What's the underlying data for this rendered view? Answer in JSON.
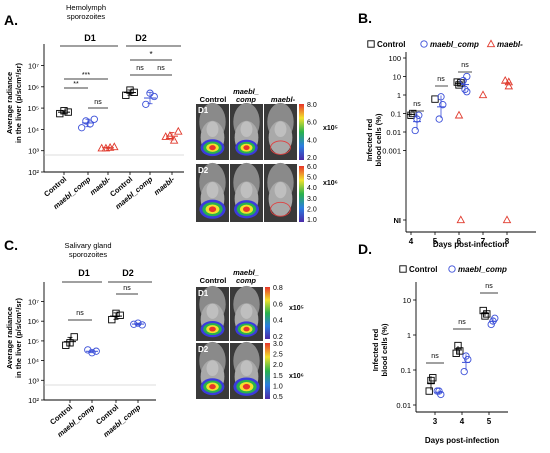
{
  "colors": {
    "control": "#000000",
    "comp": "#3b4fd8",
    "ko": "#e0392c",
    "img_bg": "#3a3a3a",
    "ellipse": "#e04040"
  },
  "panel_labels": [
    "A.",
    "B.",
    "C.",
    "D."
  ],
  "panelA": {
    "title_line1": "Hemolymph",
    "title_line2": "sporozoites",
    "ylabel_line1": "Average radiance",
    "ylabel_line2": "in the liver (p/s/cm²/sr)",
    "yticks": [
      "10²",
      "10³",
      "10⁴",
      "10⁵",
      "10⁶",
      "10⁷"
    ],
    "groups": [
      "D1",
      "D2"
    ],
    "categories": [
      "Control",
      "maebl_comp",
      "maebl-",
      "Control",
      "maebl_comp",
      "maebl-"
    ],
    "sig_labels": [
      "**",
      "***",
      "ns",
      "ns",
      "ns",
      "*"
    ]
  },
  "panelA_img": {
    "col_labels": [
      "Control",
      "maebl_",
      "comp",
      "maebl-"
    ],
    "row_labels": [
      "D1",
      "D2"
    ],
    "scale1": [
      "8.0",
      "6.0",
      "4.0",
      "2.0"
    ],
    "scale1_mult": "x10⁵",
    "scale2": [
      "6.0",
      "5.0",
      "4.0",
      "3.0",
      "2.0",
      "1.0"
    ],
    "scale2_mult": "x10⁶"
  },
  "panelB": {
    "legend": [
      "Control",
      "maebl_comp",
      "maebl-"
    ],
    "ylabel_line1": "Infected red",
    "ylabel_line2": "blood cells (%)",
    "yticks": [
      "100",
      "10",
      "1",
      "0.1",
      "0.01",
      "0.001",
      "NI"
    ],
    "xticks": [
      "4",
      "5",
      "6",
      "7",
      "8"
    ],
    "xlabel": "Days post-infection",
    "sig_labels": [
      "ns",
      "ns",
      "ns"
    ]
  },
  "panelC": {
    "title_line1": "Salivary gland",
    "title_line2": "sporozoites",
    "ylabel_line1": "Average radiance",
    "ylabel_line2": "in the liver (p/s/cm²/sr)",
    "yticks": [
      "10²",
      "10³",
      "10⁴",
      "10⁵",
      "10⁶",
      "10⁷"
    ],
    "groups": [
      "D1",
      "D2"
    ],
    "categories": [
      "Control",
      "maebl_comp",
      "Control",
      "maebl_comp"
    ],
    "sig_labels": [
      "ns",
      "ns"
    ]
  },
  "panelC_img": {
    "col_labels": [
      "Control",
      "maebl_",
      "comp"
    ],
    "row_labels": [
      "D1",
      "D2"
    ],
    "scale1": [
      "0.8",
      "0.6",
      "0.4",
      "0.2"
    ],
    "scale1_mult": "x10⁵",
    "scale2": [
      "3.0",
      "2.5",
      "2.0",
      "1.5",
      "1.0",
      "0.5"
    ],
    "scale2_mult": "x10⁶"
  },
  "panelD": {
    "legend": [
      "Control",
      "maebl_comp"
    ],
    "ylabel_line1": "Infected red",
    "ylabel_line2": "blood cells (%)",
    "yticks": [
      "10",
      "1",
      "0.1",
      "0.01"
    ],
    "xticks": [
      "3",
      "4",
      "5"
    ],
    "xlabel": "Days post-infection",
    "sig_labels": [
      "ns",
      "ns",
      "ns"
    ]
  },
  "chart_data": [
    {
      "type": "scatter",
      "panel": "A",
      "yscale": "log",
      "ylim": [
        100,
        10000000
      ],
      "categories": [
        "Control",
        "maebl_comp",
        "maebl-",
        "Control",
        "maebl_comp",
        "maebl-"
      ],
      "series": [
        {
          "name": "Control",
          "x_index": [
            0,
            0,
            0,
            3,
            3,
            3
          ],
          "values": [
            55000,
            75000,
            65000,
            400000,
            700000,
            550000
          ]
        },
        {
          "name": "maebl_comp",
          "x_index": [
            1,
            1,
            1,
            1,
            4,
            4,
            4
          ],
          "values": [
            12000,
            25000,
            18000,
            30000,
            150000,
            500000,
            350000
          ]
        },
        {
          "name": "maebl-",
          "x_index": [
            2,
            2,
            2,
            2,
            5,
            5,
            5,
            5
          ],
          "values": [
            1300,
            1300,
            1400,
            1500,
            4500,
            5000,
            3000,
            8000
          ]
        }
      ],
      "baseline": 500
    },
    {
      "type": "scatter",
      "panel": "B",
      "yscale": "log",
      "x_label": "Days post-infection",
      "series": [
        {
          "name": "Control",
          "x": [
            4,
            4,
            5,
            6,
            6,
            6
          ],
          "values": [
            0.08,
            0.1,
            0.6,
            3.5,
            4.5,
            5
          ]
        },
        {
          "name": "maebl_comp",
          "x": [
            4,
            4,
            4,
            5,
            5,
            5,
            6,
            6,
            6,
            6
          ],
          "values": [
            0.05,
            0.08,
            0.012,
            0.8,
            0.3,
            0.05,
            2,
            1.5,
            6,
            10
          ]
        },
        {
          "name": "maebl-",
          "x": [
            6,
            6,
            7,
            8,
            8,
            8,
            8
          ],
          "values": [
            0.08,
            "NI",
            1,
            "NI",
            5,
            6,
            3
          ]
        }
      ]
    },
    {
      "type": "scatter",
      "panel": "C",
      "yscale": "log",
      "ylim": [
        100,
        10000000
      ],
      "categories": [
        "Control",
        "maebl_comp",
        "Control",
        "maebl_comp"
      ],
      "series": [
        {
          "name": "Control",
          "x_index": [
            0,
            0,
            0,
            2,
            2,
            2
          ],
          "values": [
            60000,
            80000,
            160000,
            1200000,
            2500000,
            2000000
          ]
        },
        {
          "name": "maebl_comp",
          "x_index": [
            1,
            1,
            1,
            3,
            3,
            3
          ],
          "values": [
            35000,
            25000,
            30000,
            700000,
            800000,
            650000
          ]
        }
      ],
      "baseline": 500
    },
    {
      "type": "scatter",
      "panel": "D",
      "yscale": "log",
      "x_label": "Days post-infection",
      "series": [
        {
          "name": "Control",
          "x": [
            3,
            3,
            3,
            4,
            4,
            4,
            5,
            5,
            5
          ],
          "values": [
            0.05,
            0.06,
            0.025,
            0.5,
            0.35,
            0.3,
            3.5,
            4,
            5
          ]
        },
        {
          "name": "maebl_comp",
          "x": [
            3,
            3,
            3,
            4,
            4,
            4,
            5,
            5,
            5
          ],
          "values": [
            0.025,
            0.02,
            0.025,
            0.25,
            0.2,
            0.09,
            2.5,
            3,
            2
          ]
        }
      ]
    }
  ]
}
